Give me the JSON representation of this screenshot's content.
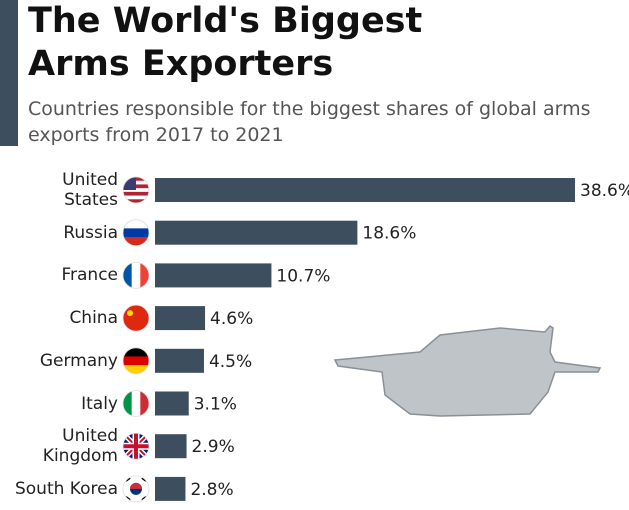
{
  "chart_data": {
    "type": "bar",
    "orientation": "horizontal",
    "title": "The World's Biggest Arms Exporters",
    "subtitle": "Countries responsible for the biggest shares of global arms exports from 2017 to 2021",
    "categories": [
      "United States",
      "Russia",
      "France",
      "China",
      "Germany",
      "Italy",
      "United Kingdom",
      "South Korea"
    ],
    "values": [
      38.6,
      18.6,
      10.7,
      4.6,
      4.5,
      3.1,
      2.9,
      2.8
    ],
    "value_labels": [
      "38.6%",
      "18.6%",
      "10.7%",
      "4.6%",
      "4.5%",
      "3.1%",
      "2.9%",
      "2.8%"
    ],
    "color": "#3d4f5f"
  }
}
